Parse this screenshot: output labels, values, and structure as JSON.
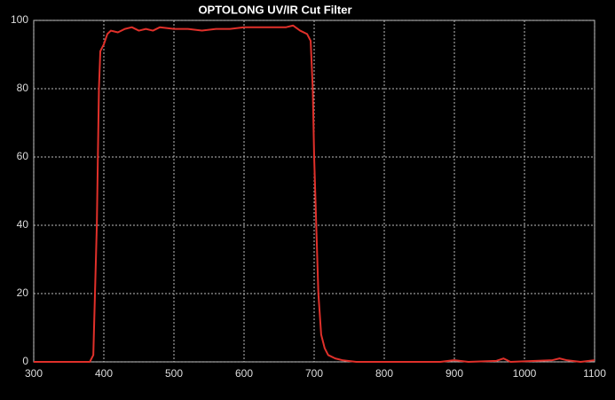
{
  "chart_data": {
    "type": "line",
    "title": "OPTOLONG UV/IR Cut Filter",
    "x": [
      300,
      350,
      380,
      385,
      390,
      393,
      395,
      400,
      405,
      410,
      420,
      430,
      440,
      450,
      460,
      470,
      480,
      500,
      520,
      540,
      560,
      580,
      600,
      620,
      640,
      660,
      670,
      680,
      690,
      695,
      698,
      700,
      703,
      706,
      710,
      715,
      720,
      730,
      740,
      760,
      800,
      880,
      900,
      920,
      960,
      970,
      980,
      1040,
      1050,
      1060,
      1080,
      1100
    ],
    "series": [
      {
        "color": "#e0302a",
        "values": [
          0,
          0,
          0,
          2,
          40,
          80,
          91,
          93,
          96,
          97,
          96.5,
          97.5,
          98,
          97,
          97.5,
          97,
          98,
          97.5,
          97.5,
          97,
          97.5,
          97.5,
          98,
          98,
          98,
          98,
          98.5,
          97,
          96,
          94,
          80,
          60,
          40,
          20,
          8,
          4,
          2,
          1,
          0.5,
          0,
          0,
          0,
          0.5,
          0,
          0.3,
          1,
          0,
          0.5,
          1,
          0.5,
          0,
          0.5
        ]
      }
    ],
    "xlim": [
      300,
      1100
    ],
    "xticks": [
      300,
      400,
      500,
      600,
      700,
      800,
      900,
      1000,
      1100
    ],
    "ylim": [
      0,
      100
    ],
    "yticks": [
      0,
      20,
      40,
      60,
      80,
      100
    ],
    "grid": true
  }
}
